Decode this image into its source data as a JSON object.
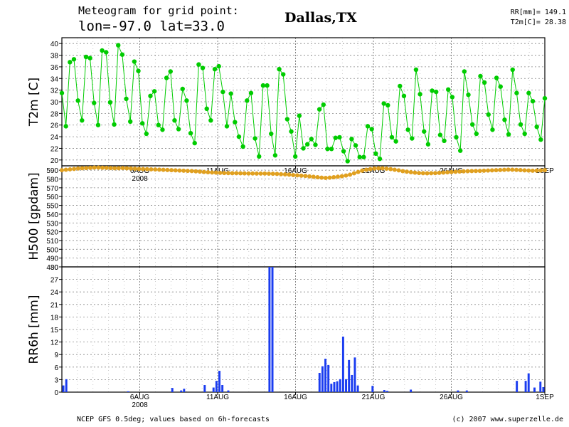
{
  "header": {
    "title_line1": "Meteogram for grid point:",
    "title_line2": "lon=-97.0 lat=33.0",
    "location": "Dallas,TX",
    "stat_rr": "RR[mm]= 149.1",
    "stat_t2m": "T2m[C]= 28.38"
  },
  "footer": {
    "source": "NCEP GFS 0.5deg; values based on 6h-forecasts",
    "credit": "(c) 2007 www.superzelle.de"
  },
  "colors": {
    "t2m": "#00cc00",
    "h500": "#e0a020",
    "rr": "#1a3cf0"
  },
  "chart_data": [
    {
      "type": "line",
      "ylabel": "T2m [C]",
      "ylim": [
        19,
        41
      ],
      "yticks": [
        20,
        22,
        24,
        26,
        28,
        30,
        32,
        34,
        36,
        38,
        40
      ],
      "xlim_days": [
        1,
        32
      ],
      "x_tick_labels": [
        "6AUG",
        "11AUG",
        "16AUG",
        "21AUG",
        "26AUG",
        "1SEP"
      ],
      "year_label": "2008",
      "grid": true,
      "series": [
        {
          "values": [
            31.5,
            25.8,
            36.8,
            37.3,
            30.2,
            26.8,
            37.7,
            37.5,
            29.8,
            26.0,
            38.8,
            38.5,
            29.9,
            26.1,
            39.7,
            38.1,
            30.5,
            26.6,
            36.9,
            35.3,
            26.3,
            24.5,
            31.0,
            31.8,
            26.0,
            25.2,
            34.1,
            35.2,
            26.8,
            25.3,
            32.2,
            30.2,
            24.6,
            22.9,
            36.4,
            35.8,
            28.8,
            26.8,
            35.6,
            36.1,
            31.7,
            25.8,
            31.4,
            26.5,
            24.0,
            22.3,
            30.2,
            31.5,
            23.7,
            20.6,
            32.8,
            32.8,
            24.5,
            20.8,
            35.6,
            34.7,
            27.0,
            24.9,
            20.6,
            27.6,
            22.0,
            22.7,
            23.6,
            22.6,
            28.7,
            29.5,
            21.9,
            21.9,
            23.8,
            23.9,
            21.5,
            19.8,
            23.6,
            22.5,
            20.5,
            20.5,
            25.8,
            25.3,
            21.1,
            20.2,
            29.7,
            29.4,
            23.9,
            23.2,
            32.7,
            31.0,
            25.2,
            23.7,
            35.5,
            31.3,
            24.9,
            22.7,
            31.9,
            31.7,
            24.3,
            23.3,
            32.1,
            30.8,
            23.9,
            21.6,
            35.2,
            31.2,
            26.1,
            24.5,
            34.4,
            33.3,
            27.8,
            25.2,
            34.1,
            32.6,
            26.9,
            24.4,
            35.5,
            31.5,
            26.1,
            24.5,
            31.5,
            30.1,
            25.7,
            23.5,
            30.6
          ]
        }
      ]
    },
    {
      "type": "line",
      "ylabel": "H500 [gpdam]",
      "ylim": [
        480,
        595
      ],
      "yticks": [
        480,
        490,
        500,
        510,
        520,
        530,
        540,
        550,
        560,
        570,
        580,
        590
      ],
      "grid": true,
      "series": [
        {
          "values": [
            590,
            590.5,
            591,
            591.5,
            592,
            592.3,
            592.5,
            592.7,
            593,
            593,
            592.8,
            592.7,
            592.5,
            592.3,
            592.3,
            592.5,
            592.2,
            592,
            591.8,
            591.5,
            591.4,
            591.2,
            591,
            590.8,
            590.6,
            590.4,
            590.2,
            590,
            589.8,
            589.6,
            589.4,
            589.2,
            589,
            588.7,
            588.4,
            588,
            587.7,
            587.4,
            587.2,
            587,
            586.8,
            586.7,
            586.6,
            586.6,
            586.5,
            586.4,
            586.3,
            586.3,
            586.2,
            586.2,
            586.2,
            586.1,
            586,
            585.8,
            585.5,
            585.3,
            585,
            584.5,
            584.2,
            583.8,
            583.5,
            583,
            582.5,
            582,
            581.5,
            581.2,
            581.5,
            582,
            582.6,
            583.2,
            584,
            585,
            586.5,
            588,
            589.5,
            590.5,
            591.3,
            592,
            592.2,
            592.2,
            591.8,
            591.3,
            590.5,
            589.8,
            588.9,
            588.3,
            587.7,
            587.2,
            586.8,
            586.6,
            586.5,
            586.6,
            586.7,
            587,
            587.3,
            587.6,
            587.9,
            588.2,
            588.5,
            588.7,
            588.9,
            589,
            589.1,
            589.2,
            589.4,
            589.6,
            589.8,
            590,
            590.2,
            590.4,
            590.6,
            590.5,
            590.3,
            590.1,
            589.8,
            589.6,
            589.4,
            589.5,
            589.7,
            590
          ]
        }
      ]
    },
    {
      "type": "bar",
      "ylabel": "RR6h [mm]",
      "ylim": [
        0,
        30
      ],
      "yticks": [
        0,
        3,
        6,
        9,
        12,
        15,
        18,
        21,
        24,
        27,
        30
      ],
      "y_tick_labels": [
        "0",
        "3",
        "6",
        "9",
        "12",
        "15",
        "18",
        "21",
        "24",
        "27",
        "30"
      ],
      "grid": true,
      "series": [
        {
          "values": [
            1.6,
            3.1,
            0,
            0,
            0,
            0,
            0,
            0,
            0,
            0,
            0,
            0,
            0,
            0,
            0,
            0,
            0,
            0,
            0,
            0,
            0,
            0,
            0.2,
            0,
            0,
            0,
            0,
            0,
            0,
            0,
            0,
            0,
            0,
            0,
            0,
            0,
            0,
            1.0,
            0,
            0,
            0.4,
            0.8,
            0,
            0,
            0,
            0,
            0,
            0,
            1.7,
            0,
            0,
            1.1,
            2.7,
            5.1,
            1.7,
            0,
            0.4,
            0,
            0,
            0,
            0,
            0,
            0,
            0,
            0,
            0,
            0,
            0,
            0,
            0,
            31.5,
            30.0,
            0,
            0,
            0,
            0,
            0,
            0,
            0,
            0,
            0,
            0,
            0,
            0,
            0,
            0,
            0,
            4.6,
            6.2,
            8.0,
            6.5,
            2.0,
            2.4,
            2.6,
            3.1,
            13.3,
            3.1,
            7.7,
            4.1,
            8.3,
            1.6,
            0,
            0,
            0,
            0,
            1.5,
            0,
            0,
            0,
            0.5,
            0.3,
            0,
            0,
            0,
            0,
            0,
            0,
            0,
            0.6,
            0,
            0,
            0,
            0,
            0,
            0,
            0,
            0,
            0,
            0,
            0,
            0,
            0,
            0,
            0,
            0.4,
            0,
            0,
            0.4,
            0,
            0,
            0,
            0,
            0,
            0,
            0,
            0,
            0,
            0,
            0,
            0,
            0,
            0,
            0,
            0,
            2.7,
            0,
            0,
            2.7,
            4.5,
            0,
            1.1,
            0,
            2.5,
            1.2
          ]
        }
      ]
    }
  ]
}
